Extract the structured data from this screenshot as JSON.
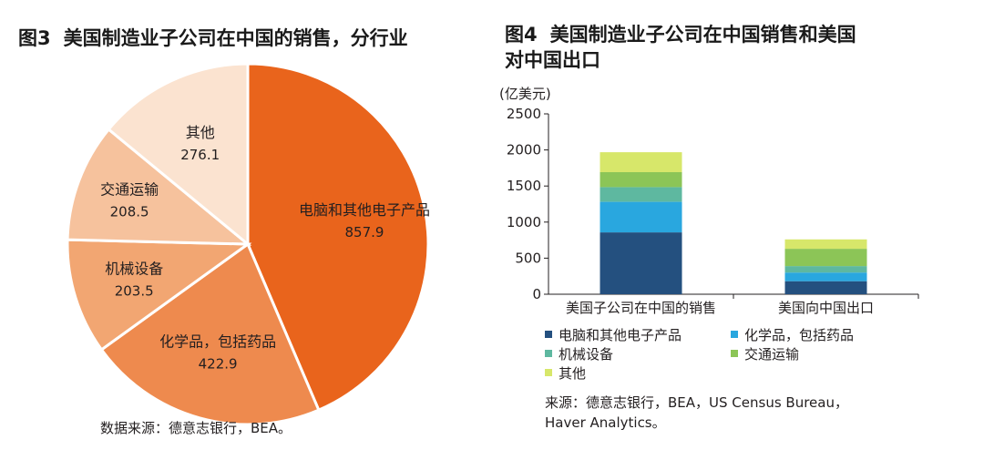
{
  "left": {
    "fig_number": "图3",
    "title": "美国制造业子公司在中国的销售，分行业",
    "source": "数据来源：德意志银行，BEA。",
    "chart_data": {
      "type": "pie",
      "title": "美国制造业子公司在中国的销售，分行业",
      "slices": [
        {
          "label": "电脑和其他电子产品",
          "value": 857.9,
          "value_text": "857.9",
          "color": "#e9641c",
          "text_color": "#231f20"
        },
        {
          "label": "化学品，包括药品",
          "value": 422.9,
          "value_text": "422.9",
          "color": "#ee8a4e",
          "text_color": "#231f20"
        },
        {
          "label": "机械设备",
          "value": 203.5,
          "value_text": "203.5",
          "color": "#f2a672",
          "text_color": "#231f20"
        },
        {
          "label": "交通运输",
          "value": 208.5,
          "value_text": "208.5",
          "color": "#f6c29d",
          "text_color": "#231f20"
        },
        {
          "label": "其他",
          "value": 276.1,
          "value_text": "276.1",
          "color": "#fbe3d0",
          "text_color": "#231f20"
        }
      ]
    }
  },
  "right": {
    "fig_number": "图4",
    "title_line1": "美国制造业子公司在中国销售和美国",
    "title_line2": "对中国出口",
    "unit": "(亿美元)",
    "source_line1": "来源：德意志银行，BEA，US Census Bureau，",
    "source_line2": "Haver Analytics。",
    "chart_data": {
      "type": "bar",
      "stacked": true,
      "categories": [
        "美国子公司在中国的销售",
        "美国向中国出口"
      ],
      "ylabel": "(亿美元)",
      "ylim": [
        0,
        2500
      ],
      "yticks": [
        0,
        500,
        1000,
        1500,
        2000,
        2500
      ],
      "legend_placement": "bottom",
      "series": [
        {
          "name": "电脑和其他电子产品",
          "color": "#24507f",
          "values": [
            857.9,
            180
          ]
        },
        {
          "name": "化学品，包括药品",
          "color": "#29a7df",
          "values": [
            422.9,
            120
          ]
        },
        {
          "name": "机械设备",
          "color": "#5eb8a0",
          "values": [
            203.5,
            90
          ]
        },
        {
          "name": "交通运输",
          "color": "#8cc557",
          "values": [
            208.5,
            240
          ]
        },
        {
          "name": "其他",
          "color": "#d7e76a",
          "values": [
            276.1,
            130
          ]
        }
      ]
    }
  }
}
